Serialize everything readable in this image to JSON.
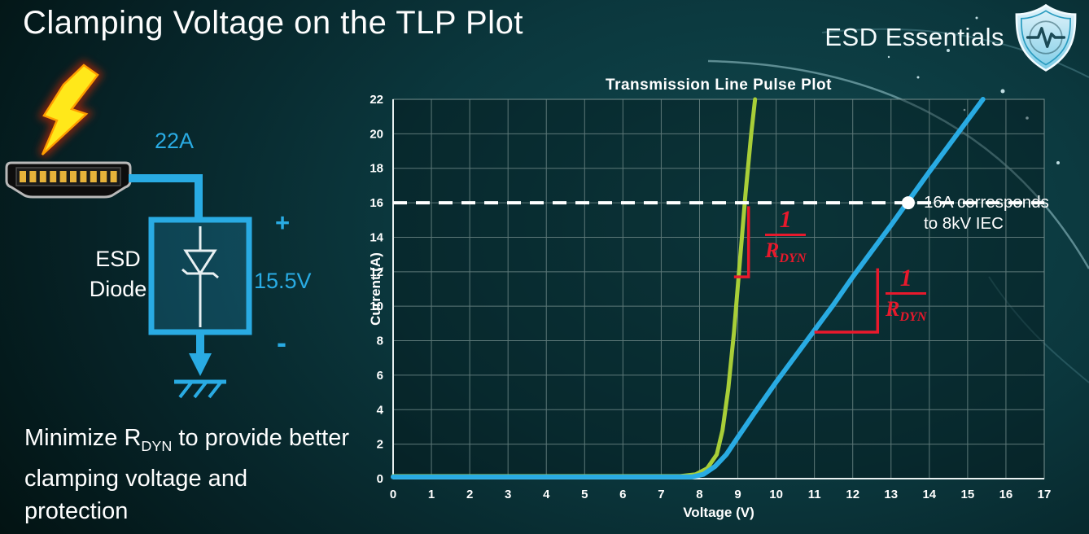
{
  "slide": {
    "title": "Clamping Voltage on the TLP Plot",
    "brand": "ESD Essentials"
  },
  "diagram": {
    "current_label": "22A",
    "device_label_line1": "ESD",
    "device_label_line2": "Diode",
    "plus": "+",
    "minus": "-",
    "voltage_label": "15.5V"
  },
  "note": {
    "part1": "Minimize R",
    "sub": "DYN",
    "part2": " to provide better clamping voltage and protection"
  },
  "chart_data": {
    "type": "line",
    "title": "Transmission Line Pulse Plot",
    "xlabel": "Voltage (V)",
    "ylabel": "Current (A)",
    "xlim": [
      0,
      17
    ],
    "ylim": [
      0,
      22
    ],
    "x_ticks": [
      0,
      1,
      2,
      3,
      4,
      5,
      6,
      7,
      8,
      9,
      10,
      11,
      12,
      13,
      14,
      15,
      16,
      17
    ],
    "y_ticks": [
      0,
      2,
      4,
      6,
      8,
      10,
      12,
      14,
      16,
      18,
      20,
      22
    ],
    "grid": true,
    "series": [
      {
        "name": "esd-diode-low-rdyn-green",
        "color": "#a8ce38",
        "width": 5,
        "points": [
          [
            0,
            0.15
          ],
          [
            7.5,
            0.15
          ],
          [
            7.9,
            0.25
          ],
          [
            8.2,
            0.6
          ],
          [
            8.45,
            1.4
          ],
          [
            8.6,
            2.8
          ],
          [
            8.75,
            5.2
          ],
          [
            8.9,
            8.5
          ],
          [
            9.05,
            12.5
          ],
          [
            9.2,
            16.5
          ],
          [
            9.35,
            20
          ],
          [
            9.45,
            22
          ]
        ]
      },
      {
        "name": "esd-diode-high-rdyn-blue",
        "color": "#29abe3",
        "width": 6,
        "points": [
          [
            0,
            0.1
          ],
          [
            7.8,
            0.1
          ],
          [
            8.1,
            0.25
          ],
          [
            8.4,
            0.7
          ],
          [
            8.7,
            1.4
          ],
          [
            9.0,
            2.4
          ],
          [
            9.4,
            3.7
          ],
          [
            10,
            5.6
          ],
          [
            10.5,
            7.1
          ],
          [
            11,
            8.6
          ],
          [
            11.5,
            10.1
          ],
          [
            12,
            11.7
          ],
          [
            12.5,
            13.2
          ],
          [
            13,
            14.7
          ],
          [
            13.45,
            16.1
          ],
          [
            14,
            17.8
          ],
          [
            14.7,
            19.9
          ],
          [
            15.4,
            22
          ]
        ]
      }
    ],
    "reference_line": {
      "y": 16,
      "color": "#ffffff",
      "dash": "17 11",
      "width": 4
    },
    "marker_point": {
      "x": 13.45,
      "y": 16,
      "radius": 8,
      "color": "#ffffff"
    },
    "annotation": {
      "line1": "16A corresponds",
      "line2": "to 8kV IEC"
    },
    "slope_markers": [
      {
        "color": "#e8192c",
        "width": 3.5,
        "points": [
          [
            8.9,
            11.7
          ],
          [
            9.28,
            11.7
          ],
          [
            9.28,
            15.8
          ]
        ]
      },
      {
        "color": "#e8192c",
        "width": 3.5,
        "points": [
          [
            11.0,
            8.5
          ],
          [
            12.65,
            8.5
          ],
          [
            12.65,
            12.2
          ]
        ]
      }
    ],
    "fraction_label": {
      "numerator": "1",
      "denominator_main": "R",
      "denominator_sub": "DYN"
    }
  }
}
